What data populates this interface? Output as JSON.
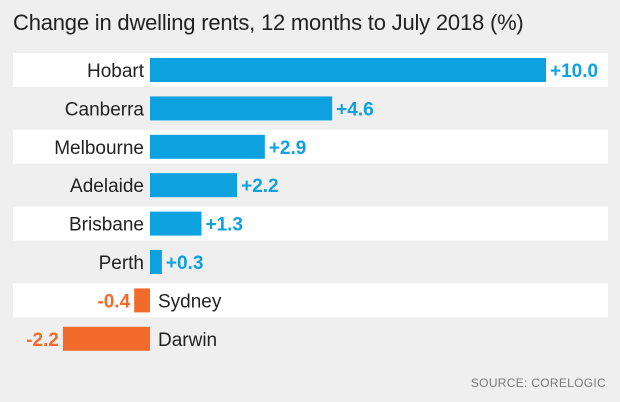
{
  "chart_data": {
    "type": "bar",
    "title": "Change in dwelling rents, 12 months to July 2018 (%)",
    "categories": [
      "Hobart",
      "Canberra",
      "Melbourne",
      "Adelaide",
      "Brisbane",
      "Perth",
      "Sydney",
      "Darwin"
    ],
    "values": [
      10.0,
      4.6,
      2.9,
      2.2,
      1.3,
      0.3,
      -0.4,
      -2.2
    ],
    "value_labels": [
      "+10.0",
      "+4.6",
      "+2.9",
      "+2.2",
      "+1.3",
      "+0.3",
      "-0.4",
      "-2.2"
    ],
    "orientation": "horizontal",
    "xlabel": "",
    "ylabel": "",
    "grid": false,
    "legend": "none",
    "colors": {
      "positive": "#0ea1df",
      "negative": "#f26b2a",
      "positive_label": "#0ea1df",
      "negative_label": "#f26b2a",
      "category_text": "#222222",
      "row_band": "#ffffff"
    }
  },
  "source": "SOURCE: CORELOGIC"
}
